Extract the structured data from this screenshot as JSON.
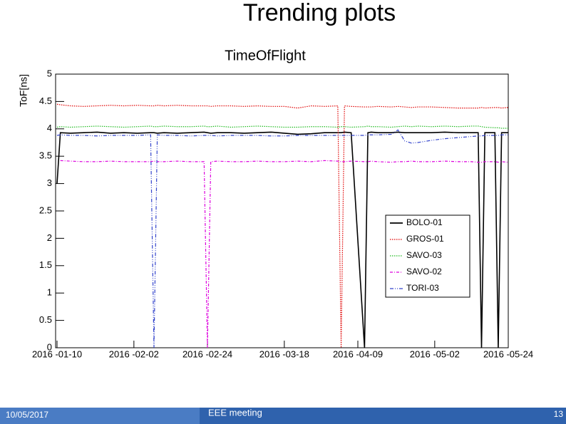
{
  "slide": {
    "title": "Trending plots",
    "footer": {
      "date": "10/05/2017",
      "event": "EEE meeting",
      "page": "13"
    }
  },
  "chart_data": {
    "type": "line",
    "title": "TimeOfFlight",
    "y_label": "ToF[ns]",
    "x": [
      "2016-01-10",
      "2016-01-11",
      "2016-01-14",
      "2016-01-18",
      "2016-01-22",
      "2016-01-26",
      "2016-01-30",
      "2016-02-03",
      "2016-02-07",
      "2016-02-08",
      "2016-02-09",
      "2016-02-11",
      "2016-02-15",
      "2016-02-19",
      "2016-02-23",
      "2016-02-24",
      "2016-02-25",
      "2016-02-27",
      "2016-03-02",
      "2016-03-06",
      "2016-03-10",
      "2016-03-14",
      "2016-03-18",
      "2016-03-22",
      "2016-03-26",
      "2016-03-30",
      "2016-04-03",
      "2016-04-04",
      "2016-04-05",
      "2016-04-07",
      "2016-04-11",
      "2016-04-12",
      "2016-04-13",
      "2016-04-15",
      "2016-04-19",
      "2016-04-21",
      "2016-04-23",
      "2016-04-25",
      "2016-04-27",
      "2016-05-01",
      "2016-05-05",
      "2016-05-09",
      "2016-05-13",
      "2016-05-15",
      "2016-05-16",
      "2016-05-17",
      "2016-05-20",
      "2016-05-21",
      "2016-05-22",
      "2016-05-24"
    ],
    "series": [
      {
        "name": "BOLO-01",
        "color": "#000000",
        "dash": "solid",
        "values": [
          3.0,
          3.93,
          3.92,
          3.93,
          3.94,
          3.92,
          3.93,
          3.92,
          3.93,
          3.93,
          3.92,
          3.93,
          3.92,
          3.93,
          3.94,
          3.93,
          3.92,
          3.93,
          3.93,
          3.92,
          3.93,
          3.94,
          3.92,
          3.9,
          3.91,
          3.93,
          3.93,
          3.93,
          3.94,
          3.93,
          0,
          3.93,
          3.94,
          3.93,
          3.93,
          3.94,
          3.93,
          3.93,
          3.93,
          3.93,
          3.94,
          3.93,
          3.93,
          3.93,
          0,
          3.93,
          3.93,
          0,
          3.93,
          3.93
        ]
      },
      {
        "name": "GROS-01",
        "color": "#e00000",
        "dash": "dotted",
        "values": [
          4.45,
          4.44,
          4.42,
          4.41,
          4.42,
          4.43,
          4.42,
          4.43,
          4.42,
          4.42,
          4.43,
          4.42,
          4.43,
          4.42,
          4.42,
          4.42,
          4.41,
          4.42,
          4.42,
          4.41,
          4.42,
          4.41,
          4.41,
          4.38,
          4.42,
          4.41,
          4.42,
          0,
          4.42,
          4.41,
          4.4,
          4.4,
          4.4,
          4.41,
          4.4,
          4.41,
          4.4,
          4.39,
          4.4,
          4.4,
          4.39,
          4.38,
          4.38,
          4.38,
          4.39,
          4.38,
          4.39,
          4.39,
          4.38,
          4.39
        ]
      },
      {
        "name": "SAVO-03",
        "color": "#22bb22",
        "dash": "dotted",
        "values": [
          4.03,
          4.04,
          4.03,
          4.04,
          4.05,
          4.04,
          4.03,
          4.04,
          4.05,
          4.04,
          4.04,
          4.05,
          4.04,
          4.04,
          4.05,
          4.04,
          4.04,
          4.05,
          4.03,
          4.04,
          4.05,
          4.04,
          4.03,
          4.03,
          4.04,
          4.04,
          4.03,
          4.04,
          4.04,
          4.03,
          4.04,
          4.05,
          4.04,
          4.04,
          4.03,
          4.04,
          4.05,
          4.04,
          4.05,
          4.04,
          4.05,
          4.04,
          4.05,
          4.05,
          4.04,
          4.03,
          4.02,
          4.02,
          4.01,
          4.01
        ]
      },
      {
        "name": "SAVO-02",
        "color": "#dd00dd",
        "dash": "dashdot",
        "values": [
          null,
          3.42,
          3.41,
          3.4,
          3.4,
          3.41,
          3.4,
          3.4,
          3.4,
          3.41,
          3.4,
          3.4,
          3.41,
          3.4,
          3.4,
          0,
          3.4,
          3.41,
          3.4,
          3.4,
          3.41,
          3.4,
          3.4,
          3.41,
          3.4,
          3.42,
          3.41,
          3.4,
          3.4,
          3.41,
          3.4,
          3.4,
          3.41,
          3.4,
          3.39,
          3.4,
          3.4,
          3.41,
          3.4,
          3.4,
          3.41,
          3.4,
          3.4,
          3.39,
          3.39,
          3.4,
          3.4,
          3.39,
          3.4,
          3.39
        ]
      },
      {
        "name": "TORI-03",
        "color": "#3344cc",
        "dash": "dashdotdot",
        "values": [
          3.88,
          3.89,
          3.88,
          3.88,
          3.87,
          3.88,
          3.88,
          3.88,
          3.89,
          0,
          3.89,
          3.88,
          3.88,
          3.87,
          3.88,
          3.88,
          3.88,
          3.87,
          3.88,
          3.88,
          3.88,
          3.87,
          3.87,
          3.88,
          3.88,
          3.88,
          3.88,
          3.88,
          3.88,
          3.88,
          3.88,
          3.89,
          3.89,
          3.89,
          3.9,
          3.98,
          3.78,
          3.74,
          3.75,
          3.79,
          3.82,
          3.84,
          3.86,
          3.87,
          3.87,
          3.88,
          3.88,
          3.88,
          3.89,
          3.89
        ]
      }
    ],
    "xlim": [
      "2016-01-10",
      "2016-05-24"
    ],
    "xticks": [
      {
        "value": "2016-01-10",
        "label": "2016 -01-10"
      },
      {
        "value": "2016-02-02",
        "label": "2016 -02-02"
      },
      {
        "value": "2016-02-24",
        "label": "2016 -02-24"
      },
      {
        "value": "2016-03-18",
        "label": "2016 -03-18"
      },
      {
        "value": "2016-04-09",
        "label": "2016 -04-09"
      },
      {
        "value": "2016-05-02",
        "label": "2016 -05-02"
      },
      {
        "value": "2016-05-24",
        "label": "2016 -05-24"
      }
    ],
    "ylim": [
      0,
      5
    ],
    "yticks": [
      0,
      0.5,
      1,
      1.5,
      2,
      2.5,
      3,
      3.5,
      4,
      4.5,
      5
    ],
    "grid": false,
    "legend": "right"
  }
}
